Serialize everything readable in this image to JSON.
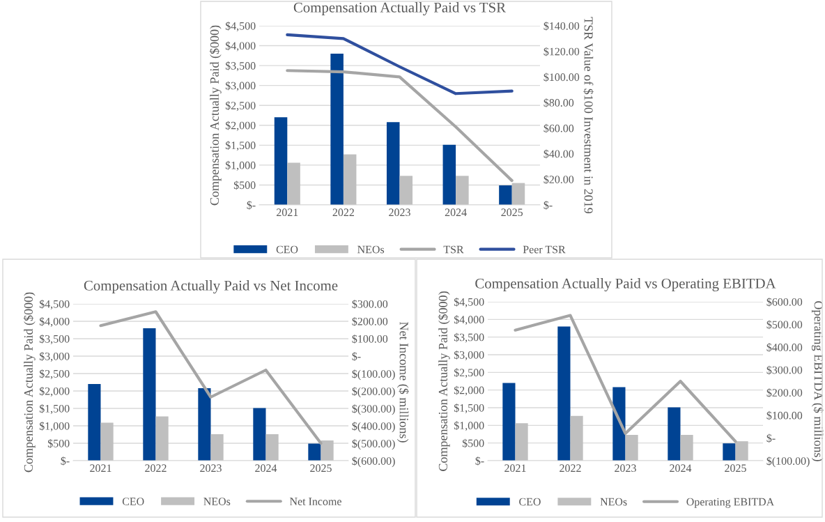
{
  "chart_data": [
    {
      "type": "bar",
      "title": "Compensation Actually Paid vs TSR",
      "ylabel": "Compensation Actually Paid ($000)",
      "y2label": "TSR Value of $100 Investment in 2019",
      "categories": [
        "2021",
        "2022",
        "2023",
        "2024",
        "2025"
      ],
      "series": [
        {
          "name": "CEO",
          "color": "#004393",
          "values": [
            2200,
            3800,
            2080,
            1510,
            490
          ]
        },
        {
          "name": "NEOs",
          "color": "#bfbfbf",
          "values": [
            1060,
            1270,
            730,
            730,
            550
          ]
        },
        {
          "name": "TSR",
          "type": "line",
          "axis": "y2",
          "color": "#a5a5a5",
          "values": [
            105,
            104,
            100,
            61,
            19
          ]
        },
        {
          "name": "Peer TSR",
          "type": "line",
          "axis": "y2",
          "color": "#2f4f9e",
          "values": [
            133,
            130,
            108,
            87,
            89
          ]
        }
      ],
      "ylim": [
        0,
        4500
      ],
      "yticks": [
        {
          "value": 0,
          "label": "$-"
        },
        {
          "value": 500,
          "label": "$500"
        },
        {
          "value": 1000,
          "label": "$1,000"
        },
        {
          "value": 1500,
          "label": "$1,500"
        },
        {
          "value": 2000,
          "label": "$2,000"
        },
        {
          "value": 2500,
          "label": "$2,500"
        },
        {
          "value": 3000,
          "label": "$3,000"
        },
        {
          "value": 3500,
          "label": "$3,500"
        },
        {
          "value": 4000,
          "label": "$4,000"
        },
        {
          "value": 4500,
          "label": "$4,500"
        }
      ],
      "y2lim": [
        0,
        140
      ],
      "y2ticks": [
        {
          "value": 0,
          "label": "$-"
        },
        {
          "value": 20,
          "label": "$20.00"
        },
        {
          "value": 40,
          "label": "$40.00"
        },
        {
          "value": 60,
          "label": "$60.00"
        },
        {
          "value": 80,
          "label": "$80.00"
        },
        {
          "value": 100,
          "label": "$100.00"
        },
        {
          "value": 120,
          "label": "$120.00"
        },
        {
          "value": 140,
          "label": "$140.00"
        }
      ],
      "grid": "y",
      "legend": "bottom"
    },
    {
      "type": "bar",
      "title": "Compensation Actually Paid vs Net Income",
      "ylabel": "Compensation Actually Paid ($000)",
      "y2label": "Net Income ($ millions)",
      "categories": [
        "2021",
        "2022",
        "2023",
        "2024",
        "2025"
      ],
      "series": [
        {
          "name": "CEO",
          "color": "#004393",
          "values": [
            2200,
            3800,
            2080,
            1510,
            490
          ]
        },
        {
          "name": "NEOs",
          "color": "#bfbfbf",
          "values": [
            1090,
            1270,
            760,
            760,
            580
          ]
        },
        {
          "name": "Net Income",
          "type": "line",
          "axis": "y2",
          "color": "#a5a5a5",
          "values": [
            175,
            255,
            -235,
            -80,
            -500
          ]
        }
      ],
      "ylim": [
        0,
        4500
      ],
      "yticks": [
        {
          "value": 0,
          "label": "$-"
        },
        {
          "value": 500,
          "label": "$500"
        },
        {
          "value": 1000,
          "label": "$1,000"
        },
        {
          "value": 1500,
          "label": "$1,500"
        },
        {
          "value": 2000,
          "label": "$2,000"
        },
        {
          "value": 2500,
          "label": "$2,500"
        },
        {
          "value": 3000,
          "label": "$3,000"
        },
        {
          "value": 3500,
          "label": "$3,500"
        },
        {
          "value": 4000,
          "label": "$4,000"
        },
        {
          "value": 4500,
          "label": "$4,500"
        }
      ],
      "y2lim": [
        -600,
        300
      ],
      "y2ticks": [
        {
          "value": -600,
          "label": "$(600.00)"
        },
        {
          "value": -500,
          "label": "$(500.00)"
        },
        {
          "value": -400,
          "label": "$(400.00)"
        },
        {
          "value": -300,
          "label": "$(300.00)"
        },
        {
          "value": -200,
          "label": "$(200.00)"
        },
        {
          "value": -100,
          "label": "$(100.00)"
        },
        {
          "value": 0,
          "label": "$-"
        },
        {
          "value": 100,
          "label": "$100.00"
        },
        {
          "value": 200,
          "label": "$200.00"
        },
        {
          "value": 300,
          "label": "$300.00"
        }
      ],
      "grid": "y",
      "legend": "bottom"
    },
    {
      "type": "bar",
      "title": "Compensation Actually Paid vs Operating EBITDA",
      "ylabel": "Compensation Actually Paid ($000)",
      "y2label": "Operating EBITDA ($ millions)",
      "categories": [
        "2021",
        "2022",
        "2023",
        "2024",
        "2025"
      ],
      "series": [
        {
          "name": "CEO",
          "color": "#004393",
          "values": [
            2200,
            3800,
            2080,
            1510,
            490
          ]
        },
        {
          "name": "NEOs",
          "color": "#bfbfbf",
          "values": [
            1060,
            1270,
            730,
            730,
            550
          ]
        },
        {
          "name": "Operating EBITDA",
          "type": "line",
          "axis": "y2",
          "color": "#a5a5a5",
          "values": [
            475,
            540,
            20,
            250,
            -15
          ]
        }
      ],
      "ylim": [
        0,
        4500
      ],
      "yticks": [
        {
          "value": 0,
          "label": "$-"
        },
        {
          "value": 500,
          "label": "$500"
        },
        {
          "value": 1000,
          "label": "$1,000"
        },
        {
          "value": 1500,
          "label": "$1,500"
        },
        {
          "value": 2000,
          "label": "$2,000"
        },
        {
          "value": 2500,
          "label": "$2,500"
        },
        {
          "value": 3000,
          "label": "$3,000"
        },
        {
          "value": 3500,
          "label": "$3,500"
        },
        {
          "value": 4000,
          "label": "$4,000"
        },
        {
          "value": 4500,
          "label": "$4,500"
        }
      ],
      "y2lim": [
        -100,
        600
      ],
      "y2ticks": [
        {
          "value": -100,
          "label": "$(100.00)"
        },
        {
          "value": 0,
          "label": "$-"
        },
        {
          "value": 100,
          "label": "$100.00"
        },
        {
          "value": 200,
          "label": "$200.00"
        },
        {
          "value": 300,
          "label": "$300.00"
        },
        {
          "value": 400,
          "label": "$400.00"
        },
        {
          "value": 500,
          "label": "$500.00"
        },
        {
          "value": 600,
          "label": "$600.00"
        }
      ],
      "grid": "y",
      "legend": "bottom"
    }
  ]
}
